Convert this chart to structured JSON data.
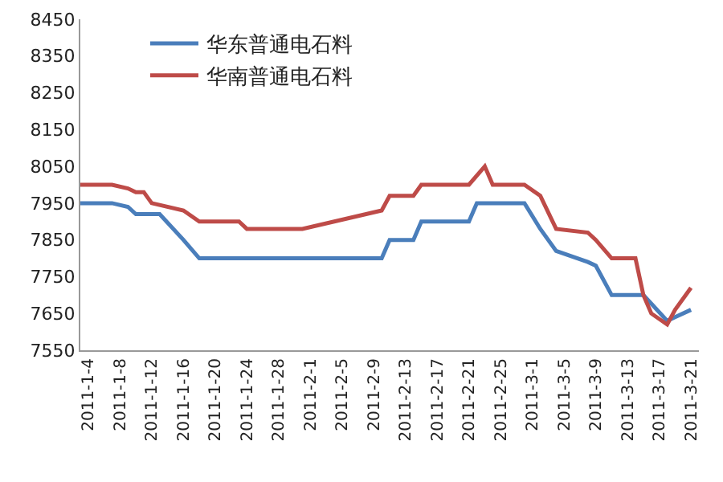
{
  "chart_data": {
    "type": "line",
    "legend": "top left",
    "grid": false,
    "marker": "none",
    "line_style": "solid",
    "xlim": [
      "2011-01-03",
      "2011-03-22"
    ],
    "xticks": [
      {
        "value": "2011-01-04",
        "label": "2011-1-4"
      },
      {
        "value": "2011-01-08",
        "label": "2011-1-8"
      },
      {
        "value": "2011-01-12",
        "label": "2011-1-12"
      },
      {
        "value": "2011-01-16",
        "label": "2011-1-16"
      },
      {
        "value": "2011-01-20",
        "label": "2011-1-20"
      },
      {
        "value": "2011-01-24",
        "label": "2011-1-24"
      },
      {
        "value": "2011-01-28",
        "label": "2011-1-28"
      },
      {
        "value": "2011-02-01",
        "label": "2011-2-1"
      },
      {
        "value": "2011-02-05",
        "label": "2011-2-5"
      },
      {
        "value": "2011-02-09",
        "label": "2011-2-9"
      },
      {
        "value": "2011-02-13",
        "label": "2011-2-13"
      },
      {
        "value": "2011-02-17",
        "label": "2011-2-17"
      },
      {
        "value": "2011-02-21",
        "label": "2011-2-21"
      },
      {
        "value": "2011-02-25",
        "label": "2011-2-25"
      },
      {
        "value": "2011-03-01",
        "label": "2011-3-1"
      },
      {
        "value": "2011-03-05",
        "label": "2011-3-5"
      },
      {
        "value": "2011-03-09",
        "label": "2011-3-9"
      },
      {
        "value": "2011-03-13",
        "label": "2011-3-13"
      },
      {
        "value": "2011-03-17",
        "label": "2011-3-17"
      },
      {
        "value": "2011-03-21",
        "label": "2011-3-21"
      }
    ],
    "ylim": [
      7550,
      8450
    ],
    "yticks": [
      7550,
      7650,
      7750,
      7850,
      7950,
      8050,
      8150,
      8250,
      8350,
      8450
    ],
    "series": [
      {
        "name": "华东普通电石料",
        "color": "#4a7ebb",
        "x": [
          "2011-01-03",
          "2011-01-07",
          "2011-01-09",
          "2011-01-10",
          "2011-01-13",
          "2011-01-16",
          "2011-01-18",
          "2011-02-10",
          "2011-02-11",
          "2011-02-14",
          "2011-02-15",
          "2011-02-21",
          "2011-02-22",
          "2011-02-28",
          "2011-03-02",
          "2011-03-04",
          "2011-03-08",
          "2011-03-09",
          "2011-03-11",
          "2011-03-15",
          "2011-03-18",
          "2011-03-19",
          "2011-03-21"
        ],
        "values": [
          7950,
          7950,
          7940,
          7920,
          7920,
          7850,
          7800,
          7800,
          7850,
          7850,
          7900,
          7900,
          7950,
          7950,
          7880,
          7820,
          7790,
          7780,
          7700,
          7700,
          7630,
          7640,
          7660
        ]
      },
      {
        "name": "华南普通电石料",
        "color": "#be4b48",
        "x": [
          "2011-01-03",
          "2011-01-07",
          "2011-01-09",
          "2011-01-10",
          "2011-01-11",
          "2011-01-12",
          "2011-01-16",
          "2011-01-18",
          "2011-01-23",
          "2011-01-24",
          "2011-01-31",
          "2011-02-10",
          "2011-02-11",
          "2011-02-14",
          "2011-02-15",
          "2011-02-21",
          "2011-02-23",
          "2011-02-24",
          "2011-02-28",
          "2011-03-02",
          "2011-03-04",
          "2011-03-08",
          "2011-03-09",
          "2011-03-11",
          "2011-03-14",
          "2011-03-15",
          "2011-03-16",
          "2011-03-18",
          "2011-03-19",
          "2011-03-21"
        ],
        "values": [
          8000,
          8000,
          7990,
          7980,
          7980,
          7950,
          7930,
          7900,
          7900,
          7880,
          7880,
          7930,
          7970,
          7970,
          8000,
          8000,
          8050,
          8000,
          8000,
          7970,
          7880,
          7870,
          7850,
          7800,
          7800,
          7700,
          7650,
          7620,
          7660,
          7720
        ]
      }
    ]
  }
}
